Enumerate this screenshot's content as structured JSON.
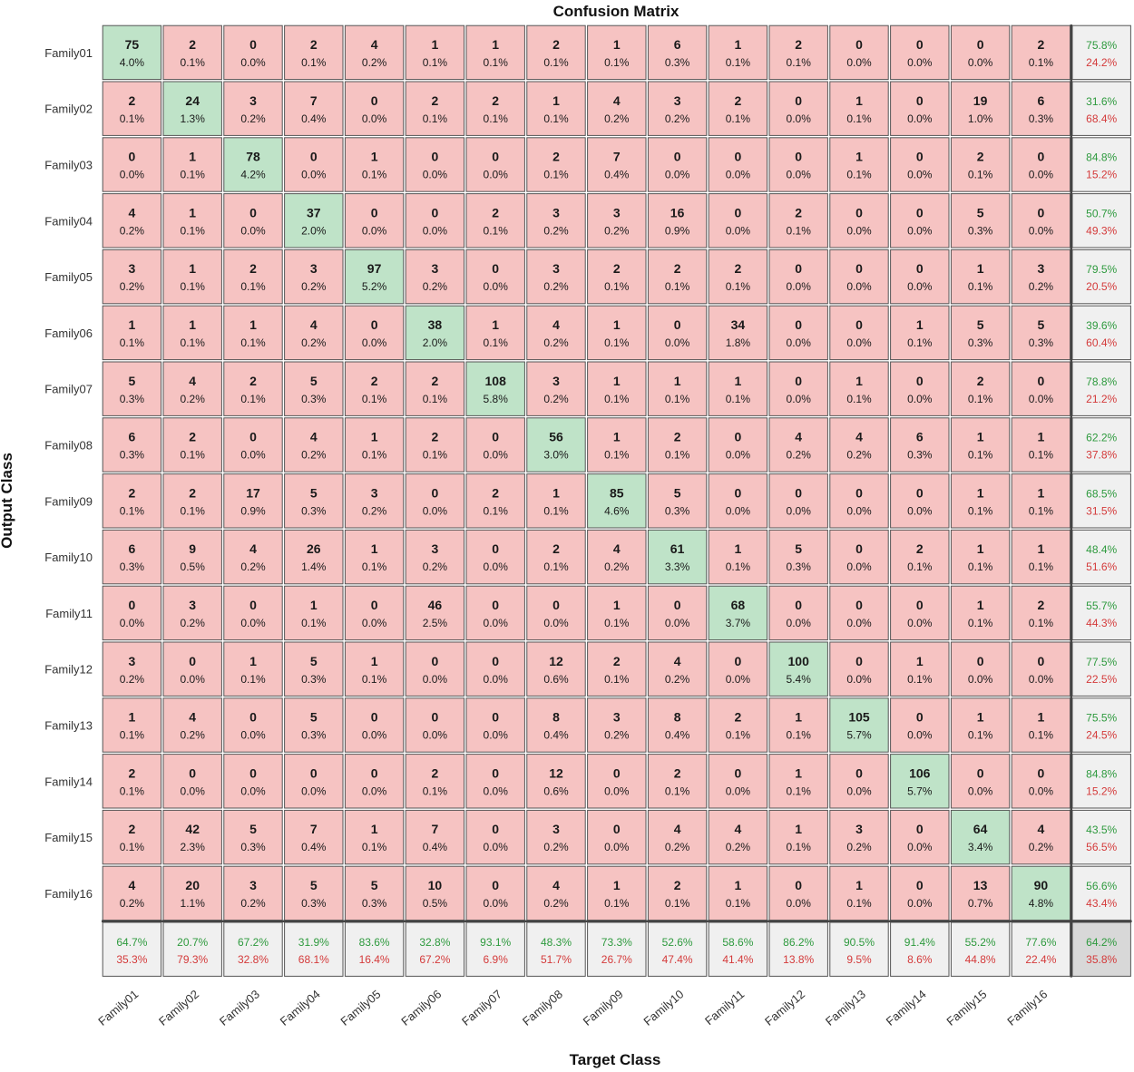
{
  "chart_data": {
    "type": "heatmap",
    "title": "Confusion Matrix",
    "xlabel": "Target Class",
    "ylabel": "Output Class",
    "x_labels": [
      "Family01",
      "Family02",
      "Family03",
      "Family04",
      "Family05",
      "Family06",
      "Family07",
      "Family08",
      "Family09",
      "Family10",
      "Family11",
      "Family12",
      "Family13",
      "Family14",
      "Family15",
      "Family16"
    ],
    "y_labels": [
      "Family01",
      "Family02",
      "Family03",
      "Family04",
      "Family05",
      "Family06",
      "Family07",
      "Family08",
      "Family09",
      "Family10",
      "Family11",
      "Family12",
      "Family13",
      "Family14",
      "Family15",
      "Family16"
    ],
    "counts": [
      [
        "75",
        "2",
        "0",
        "2",
        "4",
        "1",
        "1",
        "2",
        "1",
        "6",
        "1",
        "2",
        "0",
        "0",
        "0",
        "2"
      ],
      [
        "2",
        "24",
        "3",
        "7",
        "0",
        "2",
        "2",
        "1",
        "4",
        "3",
        "2",
        "0",
        "1",
        "0",
        "19",
        "6"
      ],
      [
        "0",
        "1",
        "78",
        "0",
        "1",
        "0",
        "0",
        "2",
        "7",
        "0",
        "0",
        "0",
        "1",
        "0",
        "2",
        "0"
      ],
      [
        "4",
        "1",
        "0",
        "37",
        "0",
        "0",
        "2",
        "3",
        "3",
        "16",
        "0",
        "2",
        "0",
        "0",
        "5",
        "0"
      ],
      [
        "3",
        "1",
        "2",
        "3",
        "97",
        "3",
        "0",
        "3",
        "2",
        "2",
        "2",
        "0",
        "0",
        "0",
        "1",
        "3"
      ],
      [
        "1",
        "1",
        "1",
        "4",
        "0",
        "38",
        "1",
        "4",
        "1",
        "0",
        "34",
        "0",
        "0",
        "1",
        "5",
        "5"
      ],
      [
        "5",
        "4",
        "2",
        "5",
        "2",
        "2",
        "108",
        "3",
        "1",
        "1",
        "1",
        "0",
        "1",
        "0",
        "2",
        "0"
      ],
      [
        "6",
        "2",
        "0",
        "4",
        "1",
        "2",
        "0",
        "56",
        "1",
        "2",
        "0",
        "4",
        "4",
        "6",
        "1",
        "1"
      ],
      [
        "2",
        "2",
        "17",
        "5",
        "3",
        "0",
        "2",
        "1",
        "85",
        "5",
        "0",
        "0",
        "0",
        "0",
        "1",
        "1"
      ],
      [
        "6",
        "9",
        "4",
        "26",
        "1",
        "3",
        "0",
        "2",
        "4",
        "61",
        "1",
        "5",
        "0",
        "2",
        "1",
        "1"
      ],
      [
        "0",
        "3",
        "0",
        "1",
        "0",
        "46",
        "0",
        "0",
        "1",
        "0",
        "68",
        "0",
        "0",
        "0",
        "1",
        "2"
      ],
      [
        "3",
        "0",
        "1",
        "5",
        "1",
        "0",
        "0",
        "12",
        "2",
        "4",
        "0",
        "100",
        "0",
        "1",
        "0",
        "0"
      ],
      [
        "1",
        "4",
        "0",
        "5",
        "0",
        "0",
        "0",
        "8",
        "3",
        "8",
        "2",
        "1",
        "105",
        "0",
        "1",
        "1"
      ],
      [
        "2",
        "0",
        "0",
        "0",
        "0",
        "2",
        "0",
        "12",
        "0",
        "2",
        "0",
        "1",
        "0",
        "106",
        "0",
        "0"
      ],
      [
        "2",
        "42",
        "5",
        "7",
        "1",
        "7",
        "0",
        "3",
        "0",
        "4",
        "4",
        "1",
        "3",
        "0",
        "64",
        "4"
      ],
      [
        "4",
        "20",
        "3",
        "5",
        "5",
        "10",
        "0",
        "4",
        "1",
        "2",
        "1",
        "0",
        "1",
        "0",
        "13",
        "90"
      ]
    ],
    "percents": [
      [
        "4.0%",
        "0.1%",
        "0.0%",
        "0.1%",
        "0.2%",
        "0.1%",
        "0.1%",
        "0.1%",
        "0.1%",
        "0.3%",
        "0.1%",
        "0.1%",
        "0.0%",
        "0.0%",
        "0.0%",
        "0.1%"
      ],
      [
        "0.1%",
        "1.3%",
        "0.2%",
        "0.4%",
        "0.0%",
        "0.1%",
        "0.1%",
        "0.1%",
        "0.2%",
        "0.2%",
        "0.1%",
        "0.0%",
        "0.1%",
        "0.0%",
        "1.0%",
        "0.3%"
      ],
      [
        "0.0%",
        "0.1%",
        "4.2%",
        "0.0%",
        "0.1%",
        "0.0%",
        "0.0%",
        "0.1%",
        "0.4%",
        "0.0%",
        "0.0%",
        "0.0%",
        "0.1%",
        "0.0%",
        "0.1%",
        "0.0%"
      ],
      [
        "0.2%",
        "0.1%",
        "0.0%",
        "2.0%",
        "0.0%",
        "0.0%",
        "0.1%",
        "0.2%",
        "0.2%",
        "0.9%",
        "0.0%",
        "0.1%",
        "0.0%",
        "0.0%",
        "0.3%",
        "0.0%"
      ],
      [
        "0.2%",
        "0.1%",
        "0.1%",
        "0.2%",
        "5.2%",
        "0.2%",
        "0.0%",
        "0.2%",
        "0.1%",
        "0.1%",
        "0.1%",
        "0.0%",
        "0.0%",
        "0.0%",
        "0.1%",
        "0.2%"
      ],
      [
        "0.1%",
        "0.1%",
        "0.1%",
        "0.2%",
        "0.0%",
        "2.0%",
        "0.1%",
        "0.2%",
        "0.1%",
        "0.0%",
        "1.8%",
        "0.0%",
        "0.0%",
        "0.1%",
        "0.3%",
        "0.3%"
      ],
      [
        "0.3%",
        "0.2%",
        "0.1%",
        "0.3%",
        "0.1%",
        "0.1%",
        "5.8%",
        "0.2%",
        "0.1%",
        "0.1%",
        "0.1%",
        "0.0%",
        "0.1%",
        "0.0%",
        "0.1%",
        "0.0%"
      ],
      [
        "0.3%",
        "0.1%",
        "0.0%",
        "0.2%",
        "0.1%",
        "0.1%",
        "0.0%",
        "3.0%",
        "0.1%",
        "0.1%",
        "0.0%",
        "0.2%",
        "0.2%",
        "0.3%",
        "0.1%",
        "0.1%"
      ],
      [
        "0.1%",
        "0.1%",
        "0.9%",
        "0.3%",
        "0.2%",
        "0.0%",
        "0.1%",
        "0.1%",
        "4.6%",
        "0.3%",
        "0.0%",
        "0.0%",
        "0.0%",
        "0.0%",
        "0.1%",
        "0.1%"
      ],
      [
        "0.3%",
        "0.5%",
        "0.2%",
        "1.4%",
        "0.1%",
        "0.2%",
        "0.0%",
        "0.1%",
        "0.2%",
        "3.3%",
        "0.1%",
        "0.3%",
        "0.0%",
        "0.1%",
        "0.1%",
        "0.1%"
      ],
      [
        "0.0%",
        "0.2%",
        "0.0%",
        "0.1%",
        "0.0%",
        "2.5%",
        "0.0%",
        "0.0%",
        "0.1%",
        "0.0%",
        "3.7%",
        "0.0%",
        "0.0%",
        "0.0%",
        "0.1%",
        "0.1%"
      ],
      [
        "0.2%",
        "0.0%",
        "0.1%",
        "0.3%",
        "0.1%",
        "0.0%",
        "0.0%",
        "0.6%",
        "0.1%",
        "0.2%",
        "0.0%",
        "5.4%",
        "0.0%",
        "0.1%",
        "0.0%",
        "0.0%"
      ],
      [
        "0.1%",
        "0.2%",
        "0.0%",
        "0.3%",
        "0.0%",
        "0.0%",
        "0.0%",
        "0.4%",
        "0.2%",
        "0.4%",
        "0.1%",
        "0.1%",
        "5.7%",
        "0.0%",
        "0.1%",
        "0.1%"
      ],
      [
        "0.1%",
        "0.0%",
        "0.0%",
        "0.0%",
        "0.0%",
        "0.1%",
        "0.0%",
        "0.6%",
        "0.0%",
        "0.1%",
        "0.0%",
        "0.1%",
        "0.0%",
        "5.7%",
        "0.0%",
        "0.0%"
      ],
      [
        "0.1%",
        "2.3%",
        "0.3%",
        "0.4%",
        "0.1%",
        "0.4%",
        "0.0%",
        "0.2%",
        "0.0%",
        "0.2%",
        "0.2%",
        "0.1%",
        "0.2%",
        "0.0%",
        "3.4%",
        "0.2%"
      ],
      [
        "0.2%",
        "1.1%",
        "0.2%",
        "0.3%",
        "0.3%",
        "0.5%",
        "0.0%",
        "0.2%",
        "0.1%",
        "0.1%",
        "0.1%",
        "0.0%",
        "0.1%",
        "0.0%",
        "0.7%",
        "4.8%"
      ]
    ],
    "row_summary": [
      [
        "75.8%",
        "24.2%"
      ],
      [
        "31.6%",
        "68.4%"
      ],
      [
        "84.8%",
        "15.2%"
      ],
      [
        "50.7%",
        "49.3%"
      ],
      [
        "79.5%",
        "20.5%"
      ],
      [
        "39.6%",
        "60.4%"
      ],
      [
        "78.8%",
        "21.2%"
      ],
      [
        "62.2%",
        "37.8%"
      ],
      [
        "68.5%",
        "31.5%"
      ],
      [
        "48.4%",
        "51.6%"
      ],
      [
        "55.7%",
        "44.3%"
      ],
      [
        "77.5%",
        "22.5%"
      ],
      [
        "75.5%",
        "24.5%"
      ],
      [
        "84.8%",
        "15.2%"
      ],
      [
        "43.5%",
        "56.5%"
      ],
      [
        "56.6%",
        "43.4%"
      ]
    ],
    "col_summary": [
      [
        "64.7%",
        "35.3%"
      ],
      [
        "20.7%",
        "79.3%"
      ],
      [
        "67.2%",
        "32.8%"
      ],
      [
        "31.9%",
        "68.1%"
      ],
      [
        "83.6%",
        "16.4%"
      ],
      [
        "32.8%",
        "67.2%"
      ],
      [
        "93.1%",
        "6.9%"
      ],
      [
        "48.3%",
        "51.7%"
      ],
      [
        "73.3%",
        "26.7%"
      ],
      [
        "52.6%",
        "47.4%"
      ],
      [
        "58.6%",
        "41.4%"
      ],
      [
        "86.2%",
        "13.8%"
      ],
      [
        "90.5%",
        "9.5%"
      ],
      [
        "91.4%",
        "8.6%"
      ],
      [
        "55.2%",
        "44.8%"
      ],
      [
        "77.6%",
        "22.4%"
      ]
    ],
    "overall": [
      "64.2%",
      "35.8%"
    ]
  },
  "colors": {
    "diag": "#bfe3c8",
    "offdiag": "#f6c3c2",
    "summary": "#f0f0f0",
    "overall": "#d8d8d8",
    "green_text": "#2e9a3e",
    "red_text": "#d43a3a",
    "grid": "#555555"
  }
}
